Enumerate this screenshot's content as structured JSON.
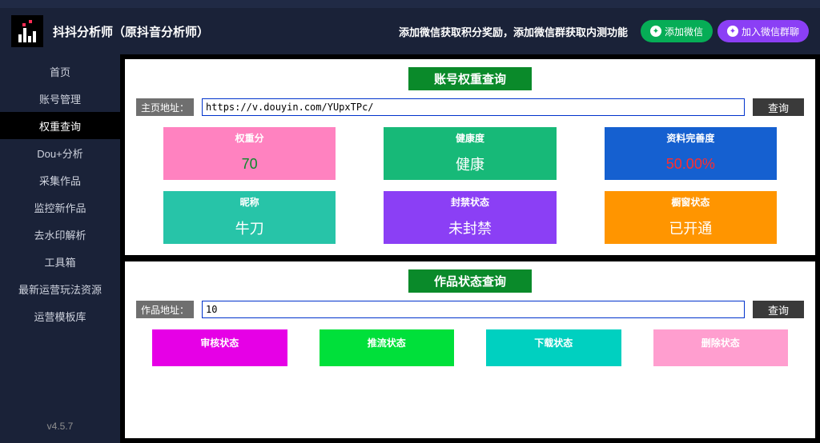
{
  "app_title": "抖抖分析师（原抖音分析师）",
  "promo_text": "添加微信获取积分奖励，添加微信群获取内测功能",
  "header_buttons": {
    "wechat": "添加微信",
    "wechat_group": "加入微信群聊"
  },
  "sidebar": {
    "items": [
      "首页",
      "账号管理",
      "权重查询",
      "Dou+分析",
      "采集作品",
      "监控新作品",
      "去水印解析",
      "工具箱",
      "最新运营玩法资源",
      "运营模板库"
    ],
    "active_index": 2,
    "version": "v4.5.7"
  },
  "panel1": {
    "title": "账号权重查询",
    "input_label": "主页地址：",
    "input_value": "https://v.douyin.com/YUpxTPc/",
    "query_btn": "查询",
    "row1": [
      {
        "label": "权重分",
        "value": "70",
        "bg": "#ff82c0",
        "value_color": "#0a8a2a"
      },
      {
        "label": "健康度",
        "value": "健康",
        "bg": "#17b978",
        "value_color": "#ffffff"
      },
      {
        "label": "资料完善度",
        "value": "50.00%",
        "bg": "#1560d0",
        "value_color": "#ff2d2d"
      }
    ],
    "row2": [
      {
        "label": "昵称",
        "value": "牛刀",
        "bg": "#27c4a8",
        "value_color": "#ffffff"
      },
      {
        "label": "封禁状态",
        "value": "未封禁",
        "bg": "#8b3ff5",
        "value_color": "#ffffff"
      },
      {
        "label": "橱窗状态",
        "value": "已开通",
        "bg": "#ff9500",
        "value_color": "#ffffff"
      }
    ]
  },
  "panel2": {
    "title": "作品状态查询",
    "input_label": "作品地址：",
    "input_value": "10",
    "query_btn": "查询",
    "row": [
      {
        "label": "审核状态",
        "bg": "#e600e6"
      },
      {
        "label": "推流状态",
        "bg": "#00e03a"
      },
      {
        "label": "下载状态",
        "bg": "#00d0c0"
      },
      {
        "label": "删除状态",
        "bg": "#ff9ecf"
      }
    ]
  }
}
